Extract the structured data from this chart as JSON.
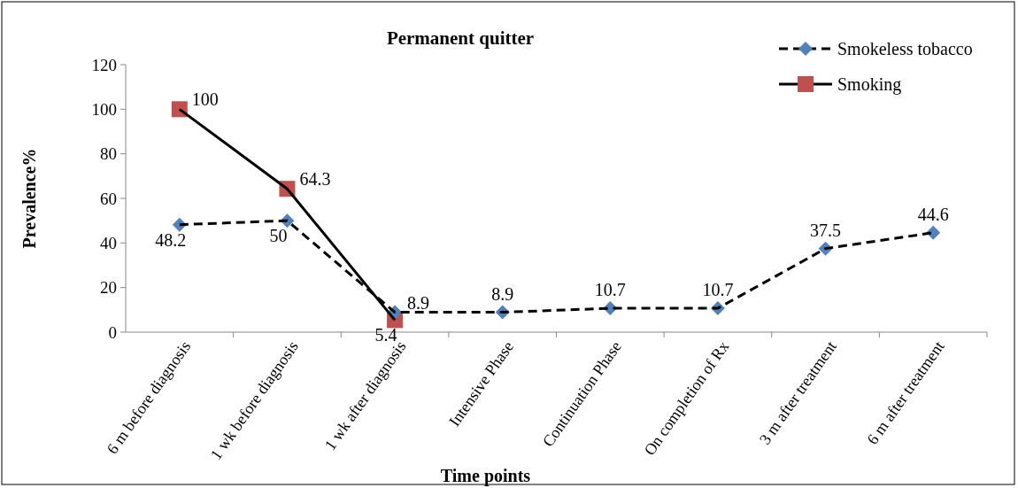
{
  "chart_data": {
    "type": "line",
    "title": "Permanent quitter",
    "xlabel": "Time points",
    "ylabel": "Prevalence%",
    "categories": [
      "6 m before diagnosis",
      "1 wk before diagnosis",
      "1 wk after diagnosis",
      "Intensive Phase",
      "Continuation Phase",
      "On completion of Rx",
      "3 m after treatment",
      "6 m after treatment"
    ],
    "series": [
      {
        "name": "Smokeless tobacco",
        "color": "#4f81bd",
        "marker": "diamond",
        "line_style": "dashed",
        "values": [
          48.2,
          50,
          8.9,
          8.9,
          10.7,
          10.7,
          37.5,
          44.6
        ]
      },
      {
        "name": "Smoking",
        "color": "#c0504d",
        "marker": "square",
        "line_style": "solid",
        "values": [
          100,
          64.3,
          5.4,
          null,
          null,
          null,
          null,
          null
        ]
      }
    ],
    "ylim": [
      0,
      120
    ],
    "yticks": [
      0,
      20,
      40,
      60,
      80,
      100,
      120
    ],
    "grid": false,
    "legend": "top right",
    "data_labels": true
  }
}
